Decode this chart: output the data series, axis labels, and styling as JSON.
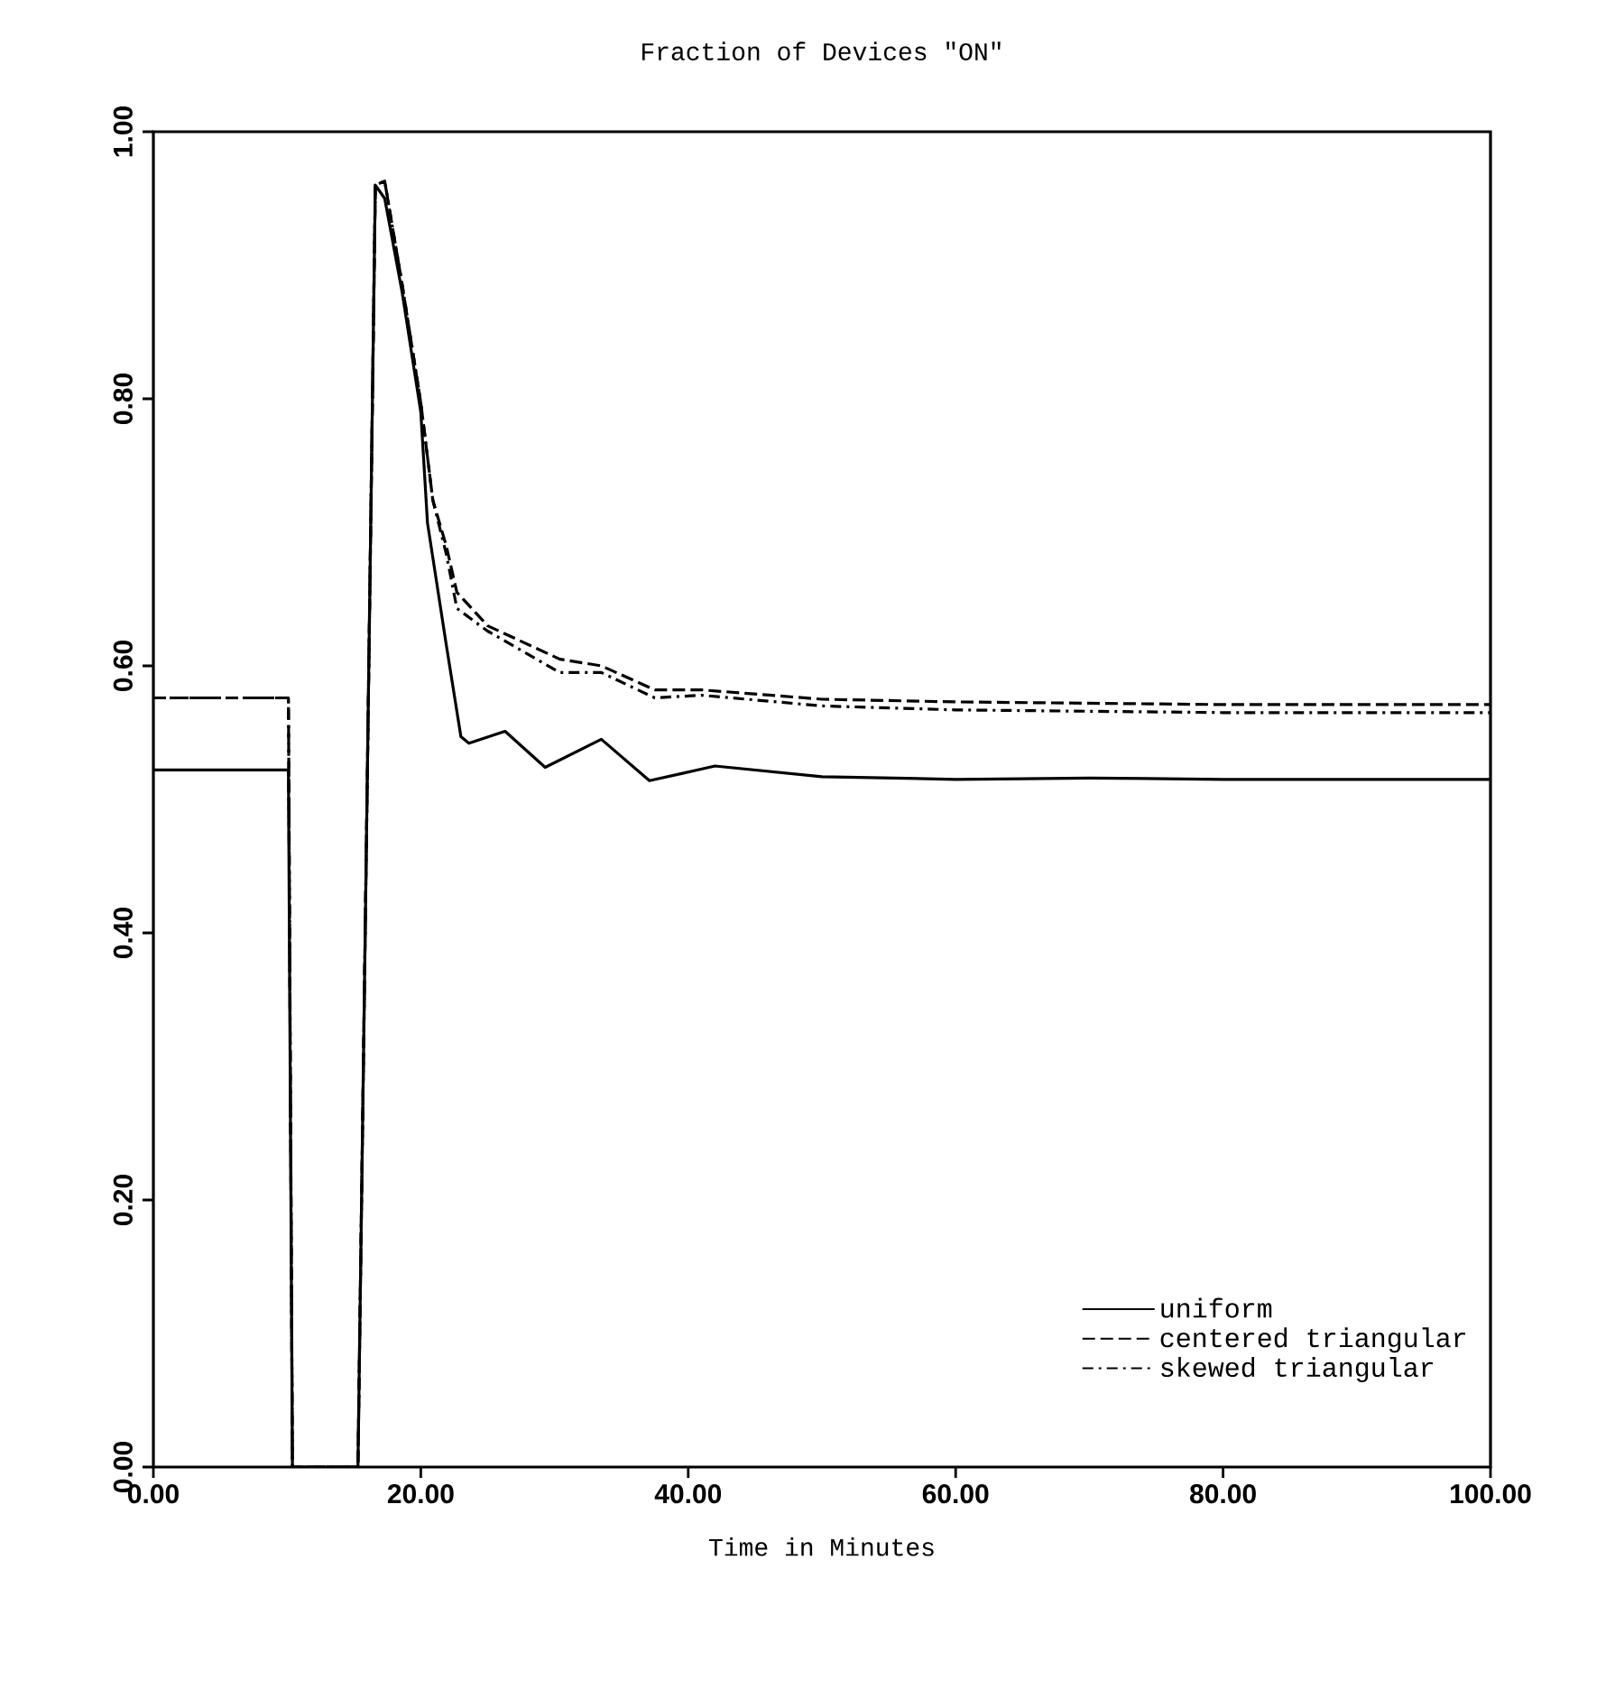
{
  "chart_data": {
    "type": "line",
    "title": "Fraction of Devices \"ON\"",
    "xlabel": "Time in Minutes",
    "xlim": [
      0,
      100
    ],
    "ylim": [
      0,
      1
    ],
    "xticks": [
      {
        "value": 0,
        "label": "0.00"
      },
      {
        "value": 20,
        "label": "20.00"
      },
      {
        "value": 40,
        "label": "40.00"
      },
      {
        "value": 60,
        "label": "60.00"
      },
      {
        "value": 80,
        "label": "80.00"
      },
      {
        "value": 100,
        "label": "100.00"
      }
    ],
    "yticks": [
      {
        "value": 0,
        "label": "0.00"
      },
      {
        "value": 0.2,
        "label": "0.20"
      },
      {
        "value": 0.4,
        "label": "0.40"
      },
      {
        "value": 0.6,
        "label": "0.60"
      },
      {
        "value": 0.8,
        "label": "0.80"
      },
      {
        "value": 1,
        "label": "1.00"
      }
    ],
    "grid": false,
    "legend": "bottom right",
    "marker": "none",
    "series": [
      {
        "name": "uniform",
        "color": "#000000",
        "line_style": "solid",
        "x": [
          0,
          10.1,
          10.4,
          15.3,
          16.6,
          17.3,
          18.6,
          20.0,
          20.5,
          21.9,
          23.0,
          23.6,
          26.3,
          29.3,
          33.5,
          37.1,
          39.8,
          42,
          50,
          60,
          70,
          80,
          90,
          100
        ],
        "values": [
          0.522,
          0.522,
          0,
          0,
          0.96,
          0.95,
          0.88,
          0.79,
          0.707,
          0.616,
          0.547,
          0.542,
          0.551,
          0.524,
          0.545,
          0.514,
          0.52,
          0.525,
          0.517,
          0.515,
          0.516,
          0.515,
          0.515,
          0.515
        ]
      },
      {
        "name": "centered triangular",
        "color": "#000000",
        "line_style": "dashed",
        "x": [
          0,
          10.1,
          10.4,
          15.3,
          16.6,
          17.3,
          18.6,
          20.0,
          20.9,
          21.9,
          22.7,
          25.0,
          30.4,
          33.5,
          37.5,
          41,
          50,
          60,
          70,
          80,
          90,
          100
        ],
        "values": [
          0.576,
          0.576,
          0,
          0,
          0.96,
          0.963,
          0.886,
          0.797,
          0.724,
          0.69,
          0.655,
          0.63,
          0.605,
          0.6,
          0.582,
          0.582,
          0.575,
          0.573,
          0.572,
          0.571,
          0.571,
          0.571
        ]
      },
      {
        "name": "skewed triangular",
        "color": "#000000",
        "line_style": "dashdot",
        "x": [
          0,
          10.1,
          10.4,
          15.3,
          16.6,
          17.3,
          18.6,
          20.0,
          20.9,
          21.9,
          22.7,
          25.0,
          30.4,
          33.5,
          37.5,
          41,
          50,
          60,
          70,
          80,
          90,
          100
        ],
        "values": [
          0.576,
          0.576,
          0,
          0,
          0.96,
          0.963,
          0.886,
          0.797,
          0.724,
          0.684,
          0.643,
          0.626,
          0.595,
          0.595,
          0.576,
          0.578,
          0.57,
          0.567,
          0.566,
          0.565,
          0.565,
          0.565
        ]
      }
    ]
  }
}
